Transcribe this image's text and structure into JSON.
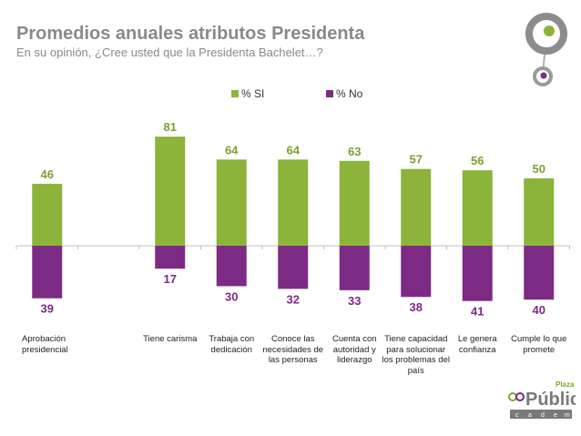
{
  "header": {
    "title": "Promedios anuales atributos Presidenta",
    "subtitle": "En su opinión, ¿Cree usted que la Presidenta Bachelet…?"
  },
  "brand": {
    "word": "Pública",
    "prefix": "Plaza",
    "letters": [
      "c",
      "a",
      "d",
      "e",
      "m"
    ],
    "colors": {
      "green": "#7aaa2a",
      "purple": "#7a2a82",
      "gray": "#808080"
    }
  },
  "chart_data": {
    "type": "bar",
    "title": "",
    "xlabel": "",
    "ylabel": "",
    "categories": [
      "Aprobación presidencial",
      "",
      "Tiene carisma",
      "Trabaja con dedicación",
      "Conoce las necesidades de las personas",
      "Cuenta con autoridad y liderazgo",
      "Tiene capacidad para solucionar los problemas del país",
      "Le genera confianza",
      "Cumple lo que promete"
    ],
    "series": [
      {
        "name": "% SI",
        "color": "#8cb33a",
        "label_color": "#7aa030",
        "values": [
          46,
          null,
          81,
          64,
          64,
          63,
          57,
          56,
          50
        ]
      },
      {
        "name": "% No",
        "color": "#7d2a84",
        "label_color": "#7d2a84",
        "values": [
          39,
          null,
          17,
          30,
          32,
          33,
          38,
          41,
          40
        ]
      }
    ],
    "ylim": [
      -100,
      100
    ],
    "grid": false,
    "legend": "top-center"
  }
}
